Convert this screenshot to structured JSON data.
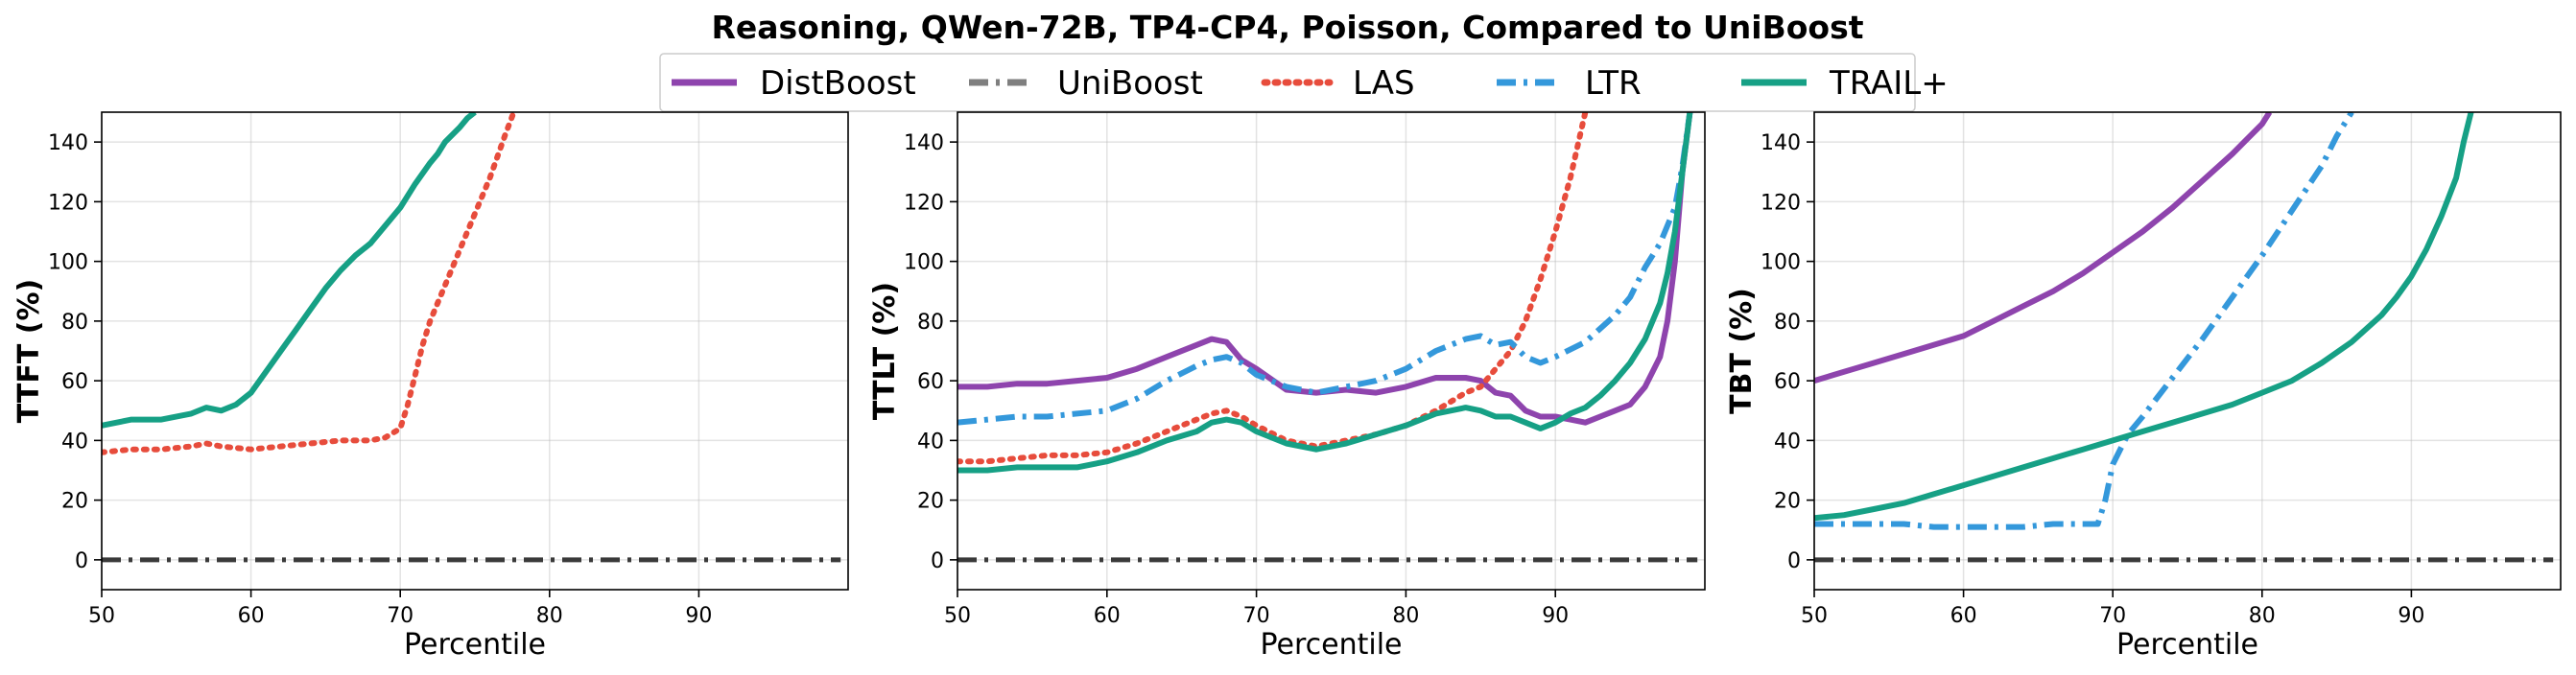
{
  "figure": {
    "title": "Reasoning, QWen-72B, TP4-CP4, Poisson, Compared to UniBoost"
  },
  "legend": [
    {
      "label": "DistBoost",
      "color": "#8e44ad",
      "style": "solid"
    },
    {
      "label": "UniBoost",
      "color": "#7f7f7f",
      "style": "dashdot"
    },
    {
      "label": "LAS",
      "color": "#e74c3c",
      "style": "dotted"
    },
    {
      "label": "LTR",
      "color": "#3498db",
      "style": "dashdot"
    },
    {
      "label": "TRAIL+",
      "color": "#16a085",
      "style": "solid"
    }
  ],
  "chart_data": [
    {
      "type": "line",
      "xlabel": "Percentile",
      "ylabel": "TTFT (%)",
      "xlim": [
        50,
        100
      ],
      "ylim": [
        -10,
        150
      ],
      "xticks": [
        "50",
        "60",
        "70",
        "80",
        "90"
      ],
      "yticks": [
        "0",
        "20",
        "40",
        "60",
        "80",
        "100",
        "120",
        "140"
      ],
      "grid": true,
      "series": [
        {
          "name": "UniBoost",
          "x": [
            50,
            99.5
          ],
          "y": [
            0,
            0
          ]
        },
        {
          "name": "LAS",
          "x": [
            50,
            52,
            54,
            56,
            57,
            58,
            60,
            62,
            64,
            66,
            68,
            69,
            70,
            70.5,
            71,
            71.5,
            72,
            73,
            74,
            75,
            76,
            77,
            77.6
          ],
          "y": [
            36,
            37,
            37,
            38,
            39,
            38,
            37,
            38,
            39,
            40,
            40,
            41,
            44,
            52,
            62,
            72,
            80,
            92,
            104,
            116,
            128,
            142,
            150
          ]
        },
        {
          "name": "TRAIL+",
          "x": [
            50,
            52,
            54,
            56,
            57,
            58,
            59,
            60,
            61,
            62,
            63,
            64,
            65,
            66,
            67,
            68,
            69,
            70,
            71,
            72,
            72.5,
            73,
            74,
            74.5,
            75
          ],
          "y": [
            45,
            47,
            47,
            49,
            51,
            50,
            52,
            56,
            63,
            70,
            77,
            84,
            91,
            97,
            102,
            106,
            112,
            118,
            126,
            133,
            136,
            140,
            145,
            148,
            150
          ]
        }
      ]
    },
    {
      "type": "line",
      "xlabel": "Percentile",
      "ylabel": "TTLT (%)",
      "xlim": [
        50,
        100
      ],
      "ylim": [
        -10,
        150
      ],
      "xticks": [
        "50",
        "60",
        "70",
        "80",
        "90"
      ],
      "yticks": [
        "0",
        "20",
        "40",
        "60",
        "80",
        "100",
        "120",
        "140"
      ],
      "grid": true,
      "series": [
        {
          "name": "UniBoost",
          "x": [
            50,
            99.5
          ],
          "y": [
            0,
            0
          ]
        },
        {
          "name": "DistBoost",
          "x": [
            50,
            52,
            54,
            56,
            58,
            60,
            62,
            64,
            66,
            67,
            68,
            69,
            70,
            72,
            74,
            76,
            78,
            80,
            82,
            84,
            85,
            86,
            87,
            88,
            89,
            90,
            91,
            92,
            93,
            94,
            95,
            96,
            97,
            97.5,
            98,
            98.5,
            99
          ],
          "y": [
            58,
            58,
            59,
            59,
            60,
            61,
            64,
            68,
            72,
            74,
            73,
            67,
            64,
            57,
            56,
            57,
            56,
            58,
            61,
            61,
            60,
            56,
            55,
            50,
            48,
            48,
            47,
            46,
            48,
            50,
            52,
            58,
            68,
            80,
            100,
            130,
            150
          ]
        },
        {
          "name": "LAS",
          "x": [
            50,
            52,
            54,
            56,
            58,
            60,
            62,
            64,
            66,
            67,
            68,
            69,
            70,
            72,
            74,
            76,
            78,
            80,
            82,
            84,
            85,
            86,
            87,
            88,
            89,
            90,
            91,
            92
          ],
          "y": [
            33,
            33,
            34,
            35,
            35,
            36,
            39,
            43,
            47,
            49,
            50,
            48,
            45,
            40,
            38,
            40,
            42,
            45,
            50,
            56,
            58,
            64,
            70,
            80,
            94,
            110,
            128,
            150
          ]
        },
        {
          "name": "LTR",
          "x": [
            50,
            52,
            54,
            56,
            58,
            60,
            62,
            64,
            66,
            67,
            68,
            69,
            70,
            72,
            74,
            76,
            78,
            80,
            82,
            84,
            85,
            86,
            87,
            88,
            89,
            90,
            92,
            94,
            95,
            96,
            97,
            98,
            98.5,
            99
          ],
          "y": [
            46,
            47,
            48,
            48,
            49,
            50,
            54,
            60,
            65,
            67,
            68,
            66,
            62,
            58,
            56,
            58,
            60,
            64,
            70,
            74,
            75,
            72,
            73,
            68,
            66,
            68,
            73,
            82,
            88,
            98,
            106,
            118,
            132,
            150
          ]
        },
        {
          "name": "TRAIL+",
          "x": [
            50,
            52,
            54,
            56,
            58,
            60,
            62,
            64,
            66,
            67,
            68,
            69,
            70,
            72,
            74,
            76,
            78,
            80,
            82,
            84,
            85,
            86,
            87,
            88,
            89,
            90,
            91,
            92,
            93,
            94,
            95,
            96,
            97,
            97.5,
            98,
            98.5,
            99
          ],
          "y": [
            30,
            30,
            31,
            31,
            31,
            33,
            36,
            40,
            43,
            46,
            47,
            46,
            43,
            39,
            37,
            39,
            42,
            45,
            49,
            51,
            50,
            48,
            48,
            46,
            44,
            46,
            49,
            51,
            55,
            60,
            66,
            74,
            86,
            96,
            110,
            130,
            150
          ]
        }
      ]
    },
    {
      "type": "line",
      "xlabel": "Percentile",
      "ylabel": "TBT (%)",
      "xlim": [
        50,
        100
      ],
      "ylim": [
        -10,
        150
      ],
      "xticks": [
        "50",
        "60",
        "70",
        "80",
        "90"
      ],
      "yticks": [
        "0",
        "20",
        "40",
        "60",
        "80",
        "100",
        "120",
        "140"
      ],
      "grid": true,
      "series": [
        {
          "name": "UniBoost",
          "x": [
            50,
            99.5
          ],
          "y": [
            0,
            0
          ]
        },
        {
          "name": "DistBoost",
          "x": [
            50,
            52,
            54,
            56,
            58,
            60,
            62,
            64,
            66,
            68,
            70,
            72,
            74,
            76,
            78,
            79,
            80,
            80.5
          ],
          "y": [
            60,
            63,
            66,
            69,
            72,
            75,
            80,
            85,
            90,
            96,
            103,
            110,
            118,
            127,
            136,
            141,
            146,
            150
          ]
        },
        {
          "name": "LTR",
          "x": [
            50,
            52,
            54,
            56,
            58,
            60,
            62,
            64,
            66,
            68,
            69,
            69.5,
            70,
            71,
            72,
            74,
            76,
            78,
            80,
            82,
            84,
            85,
            86
          ],
          "y": [
            12,
            12,
            12,
            12,
            11,
            11,
            11,
            11,
            12,
            12,
            12,
            20,
            32,
            42,
            48,
            61,
            74,
            88,
            102,
            117,
            132,
            142,
            150
          ]
        },
        {
          "name": "TRAIL+",
          "x": [
            50,
            52,
            54,
            56,
            58,
            60,
            62,
            64,
            66,
            68,
            70,
            72,
            74,
            76,
            78,
            80,
            82,
            84,
            86,
            88,
            89,
            90,
            91,
            92,
            93,
            93.5,
            94
          ],
          "y": [
            14,
            15,
            17,
            19,
            22,
            25,
            28,
            31,
            34,
            37,
            40,
            43,
            46,
            49,
            52,
            56,
            60,
            66,
            73,
            82,
            88,
            95,
            104,
            115,
            128,
            140,
            150
          ]
        }
      ]
    }
  ]
}
